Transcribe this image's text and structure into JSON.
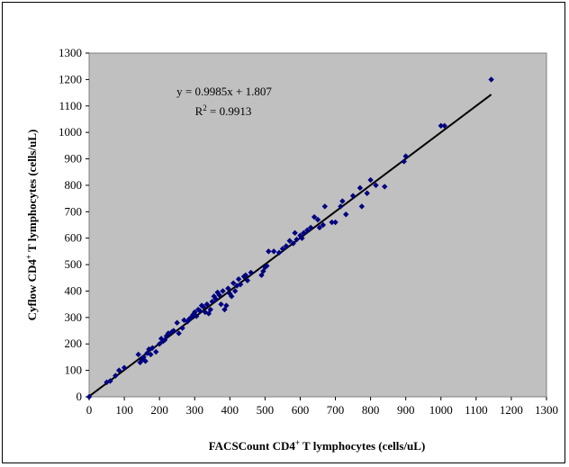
{
  "chart_data": {
    "type": "scatter",
    "xlabel": "FACSCount CD4",
    "xlabel_sup": "+",
    "xlabel_rest": " T lymphocytes (cells/uL)",
    "ylabel": "Cyflow CD4",
    "ylabel_sup": "+",
    "ylabel_rest": " T lymphocytes (cells/uL)",
    "xlim": [
      0,
      1300
    ],
    "ylim": [
      0,
      1300
    ],
    "xticks": [
      0,
      100,
      200,
      300,
      400,
      500,
      600,
      700,
      800,
      900,
      1000,
      1100,
      1200,
      1300
    ],
    "yticks": [
      0,
      100,
      200,
      300,
      400,
      500,
      600,
      700,
      800,
      900,
      1000,
      1100,
      1200,
      1300
    ],
    "grid": false,
    "plot_background": "#c0c0c0",
    "marker_color": "#000080",
    "trendline": {
      "slope": 0.9985,
      "intercept": 1.807,
      "x_range": [
        0,
        1143
      ],
      "color": "#000000"
    },
    "equation_text": "y = 0.9985x + 1.807",
    "r2_label": "R",
    "r2_sup": "2",
    "r2_value": " = 0.9913",
    "points": [
      [
        0,
        0
      ],
      [
        50,
        55
      ],
      [
        60,
        60
      ],
      [
        75,
        80
      ],
      [
        85,
        100
      ],
      [
        100,
        110
      ],
      [
        140,
        160
      ],
      [
        145,
        130
      ],
      [
        150,
        140
      ],
      [
        155,
        150
      ],
      [
        160,
        135
      ],
      [
        165,
        165
      ],
      [
        170,
        180
      ],
      [
        175,
        160
      ],
      [
        180,
        185
      ],
      [
        190,
        170
      ],
      [
        200,
        200
      ],
      [
        205,
        220
      ],
      [
        210,
        210
      ],
      [
        215,
        215
      ],
      [
        220,
        230
      ],
      [
        225,
        240
      ],
      [
        235,
        245
      ],
      [
        240,
        250
      ],
      [
        250,
        280
      ],
      [
        255,
        240
      ],
      [
        265,
        260
      ],
      [
        270,
        290
      ],
      [
        280,
        285
      ],
      [
        285,
        295
      ],
      [
        290,
        300
      ],
      [
        295,
        310
      ],
      [
        300,
        320
      ],
      [
        305,
        305
      ],
      [
        310,
        330
      ],
      [
        315,
        325
      ],
      [
        320,
        345
      ],
      [
        325,
        340
      ],
      [
        330,
        320
      ],
      [
        335,
        350
      ],
      [
        340,
        315
      ],
      [
        345,
        330
      ],
      [
        350,
        360
      ],
      [
        355,
        380
      ],
      [
        360,
        370
      ],
      [
        365,
        395
      ],
      [
        370,
        385
      ],
      [
        375,
        350
      ],
      [
        380,
        400
      ],
      [
        385,
        330
      ],
      [
        390,
        345
      ],
      [
        395,
        410
      ],
      [
        400,
        390
      ],
      [
        405,
        380
      ],
      [
        410,
        430
      ],
      [
        415,
        400
      ],
      [
        420,
        420
      ],
      [
        425,
        445
      ],
      [
        430,
        425
      ],
      [
        440,
        455
      ],
      [
        445,
        460
      ],
      [
        450,
        440
      ],
      [
        460,
        470
      ],
      [
        490,
        460
      ],
      [
        495,
        475
      ],
      [
        500,
        490
      ],
      [
        505,
        495
      ],
      [
        510,
        550
      ],
      [
        525,
        550
      ],
      [
        540,
        545
      ],
      [
        550,
        560
      ],
      [
        560,
        570
      ],
      [
        570,
        590
      ],
      [
        580,
        580
      ],
      [
        585,
        620
      ],
      [
        590,
        595
      ],
      [
        600,
        610
      ],
      [
        605,
        600
      ],
      [
        610,
        620
      ],
      [
        620,
        630
      ],
      [
        630,
        640
      ],
      [
        640,
        680
      ],
      [
        650,
        670
      ],
      [
        655,
        640
      ],
      [
        665,
        650
      ],
      [
        670,
        720
      ],
      [
        690,
        660
      ],
      [
        700,
        660
      ],
      [
        715,
        720
      ],
      [
        720,
        740
      ],
      [
        730,
        690
      ],
      [
        750,
        760
      ],
      [
        770,
        790
      ],
      [
        775,
        720
      ],
      [
        790,
        770
      ],
      [
        800,
        820
      ],
      [
        815,
        800
      ],
      [
        840,
        795
      ],
      [
        895,
        890
      ],
      [
        900,
        910
      ],
      [
        1000,
        1025
      ],
      [
        1010,
        1025
      ],
      [
        1143,
        1200
      ]
    ]
  }
}
